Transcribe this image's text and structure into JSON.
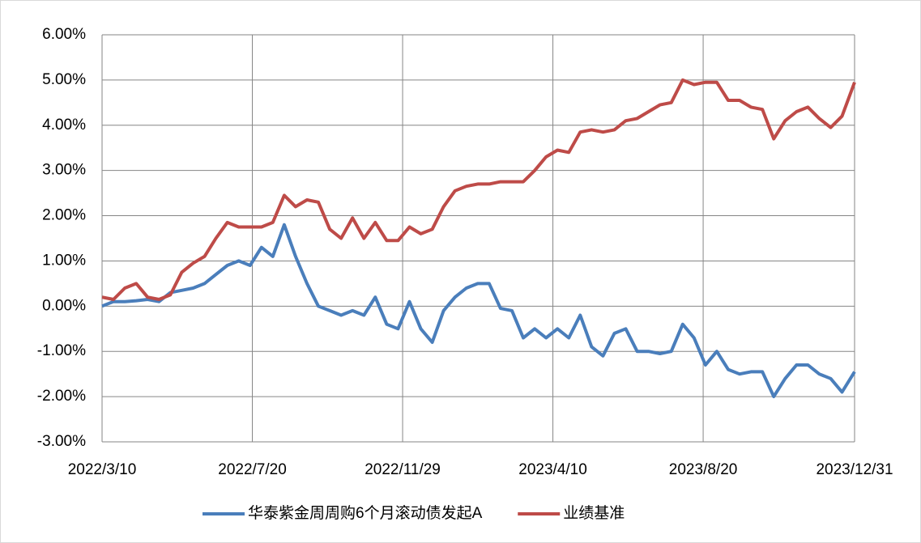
{
  "chart_data": {
    "type": "line",
    "x": [
      "2022/3/10",
      "2022/3/20",
      "2022/3/30",
      "2022/4/9",
      "2022/4/19",
      "2022/4/29",
      "2022/5/9",
      "2022/5/19",
      "2022/5/29",
      "2022/6/8",
      "2022/6/18",
      "2022/6/28",
      "2022/7/8",
      "2022/7/18",
      "2022/7/28",
      "2022/8/7",
      "2022/8/17",
      "2022/8/27",
      "2022/9/6",
      "2022/9/16",
      "2022/9/26",
      "2022/10/6",
      "2022/10/16",
      "2022/10/26",
      "2022/11/5",
      "2022/11/15",
      "2022/11/25",
      "2022/12/5",
      "2022/12/15",
      "2022/12/25",
      "2023/1/4",
      "2023/1/14",
      "2023/1/24",
      "2023/2/3",
      "2023/2/13",
      "2023/2/23",
      "2023/3/5",
      "2023/3/15",
      "2023/3/25",
      "2023/4/4",
      "2023/4/14",
      "2023/4/24",
      "2023/5/4",
      "2023/5/14",
      "2023/5/24",
      "2023/6/3",
      "2023/6/13",
      "2023/6/23",
      "2023/7/3",
      "2023/7/13",
      "2023/7/23",
      "2023/8/2",
      "2023/8/12",
      "2023/8/22",
      "2023/9/1",
      "2023/9/11",
      "2023/9/21",
      "2023/10/1",
      "2023/10/11",
      "2023/10/21",
      "2023/10/31",
      "2023/11/10",
      "2023/11/20",
      "2023/11/30",
      "2023/12/10",
      "2023/12/20",
      "2023/12/31"
    ],
    "series": [
      {
        "name": "华泰紫金周周购6个月滚动债发起A",
        "color": "#4a7ebb",
        "values": [
          0.0,
          0.1,
          0.1,
          0.12,
          0.15,
          0.1,
          0.3,
          0.35,
          0.4,
          0.5,
          0.7,
          0.9,
          1.0,
          0.9,
          1.3,
          1.1,
          1.8,
          1.1,
          0.5,
          0.0,
          -0.1,
          -0.2,
          -0.1,
          -0.2,
          0.2,
          -0.4,
          -0.5,
          0.1,
          -0.5,
          -0.8,
          -0.1,
          0.2,
          0.4,
          0.5,
          0.5,
          -0.05,
          -0.1,
          -0.7,
          -0.5,
          -0.7,
          -0.5,
          -0.7,
          -0.2,
          -0.9,
          -1.1,
          -0.6,
          -0.5,
          -1.0,
          -1.0,
          -1.05,
          -1.0,
          -0.4,
          -0.7,
          -1.3,
          -1.0,
          -1.4,
          -1.5,
          -1.45,
          -1.45,
          -2.0,
          -1.6,
          -1.3,
          -1.3,
          -1.5,
          -1.6,
          -1.9,
          -1.45
        ]
      },
      {
        "name": "业绩基准",
        "color": "#be4b48",
        "values": [
          0.2,
          0.15,
          0.4,
          0.5,
          0.2,
          0.15,
          0.25,
          0.75,
          0.95,
          1.1,
          1.5,
          1.85,
          1.75,
          1.75,
          1.75,
          1.85,
          2.45,
          2.2,
          2.35,
          2.3,
          1.7,
          1.5,
          1.95,
          1.5,
          1.85,
          1.45,
          1.45,
          1.75,
          1.6,
          1.7,
          2.2,
          2.55,
          2.65,
          2.7,
          2.7,
          2.75,
          2.75,
          2.75,
          3.0,
          3.3,
          3.45,
          3.4,
          3.85,
          3.9,
          3.85,
          3.9,
          4.1,
          4.15,
          4.3,
          4.45,
          4.5,
          5.0,
          4.9,
          4.95,
          4.95,
          4.55,
          4.55,
          4.4,
          4.35,
          3.7,
          4.1,
          4.3,
          4.4,
          4.15,
          3.95,
          4.2,
          4.95
        ]
      }
    ],
    "xlim": [
      "2022/3/10",
      "2023/12/31"
    ],
    "xticks": [
      "2022/3/10",
      "2022/7/20",
      "2022/11/29",
      "2023/4/10",
      "2023/8/20",
      "2023/12/31"
    ],
    "ylim": [
      -3,
      6
    ],
    "yticks": [
      {
        "value": -3,
        "label": "-3.00%"
      },
      {
        "value": -2,
        "label": "-2.00%"
      },
      {
        "value": -1,
        "label": "-1.00%"
      },
      {
        "value": 0,
        "label": "0.00%"
      },
      {
        "value": 1,
        "label": "1.00%"
      },
      {
        "value": 2,
        "label": "2.00%"
      },
      {
        "value": 3,
        "label": "3.00%"
      },
      {
        "value": 4,
        "label": "4.00%"
      },
      {
        "value": 5,
        "label": "5.00%"
      },
      {
        "value": 6,
        "label": "6.00%"
      }
    ],
    "grid": true,
    "legend": "bottom"
  }
}
